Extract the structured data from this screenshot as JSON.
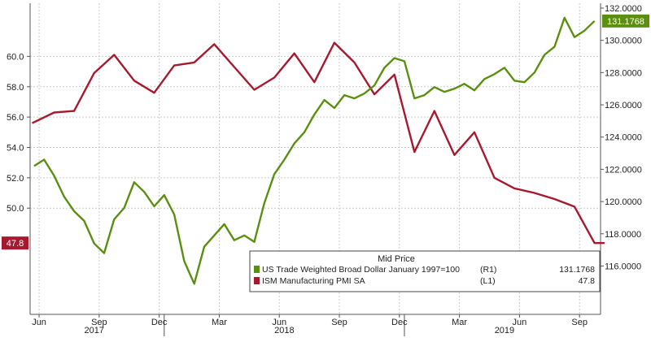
{
  "chart_data": {
    "type": "line",
    "x_ticks": [
      {
        "label": "Jun",
        "t": 0.25
      },
      {
        "label": "Sep",
        "t": 3.25
      },
      {
        "label": "Dec",
        "t": 6.25
      },
      {
        "label": "Mar",
        "t": 9.25
      },
      {
        "label": "Jun",
        "t": 12.25
      },
      {
        "label": "Sep",
        "t": 15.25
      },
      {
        "label": "Dec",
        "t": 18.25
      },
      {
        "label": "Mar",
        "t": 21.25
      },
      {
        "label": "Jun",
        "t": 24.25
      },
      {
        "label": "Sep",
        "t": 27.25
      }
    ],
    "year_labels": [
      {
        "label": "2017",
        "t": 3.0
      },
      {
        "label": "2018",
        "t": 12.5
      },
      {
        "label": "2019",
        "t": 23.5
      }
    ],
    "year_separators_t": [
      6.5,
      18.5
    ],
    "x_range": [
      -0.2,
      28.3
    ],
    "left_axis": {
      "ticks": [
        50.0,
        52.0,
        54.0,
        56.0,
        58.0,
        60.0
      ],
      "tick_labels": [
        "50.0",
        "52.0",
        "54.0",
        "56.0",
        "58.0",
        "60.0"
      ],
      "range": [
        43.0,
        63.5
      ]
    },
    "right_axis": {
      "ticks": [
        116,
        118,
        120,
        122,
        124,
        126,
        128,
        130,
        132
      ],
      "tick_labels": [
        "116.0000",
        "118.0000",
        "120.0000",
        "122.0000",
        "124.0000",
        "126.0000",
        "128.0000",
        "130.0000",
        "132.0000"
      ],
      "range": [
        113.0,
        132.3
      ]
    },
    "series": [
      {
        "name": "ISM Manufacturing PMI SA  (L1)",
        "axis": "left",
        "color": "#a6192e",
        "last_label": "47.8",
        "points": [
          [
            -0.1,
            55.6
          ],
          [
            1.0,
            56.3
          ],
          [
            2.0,
            56.4
          ],
          [
            3.0,
            58.9
          ],
          [
            4.0,
            60.1
          ],
          [
            5.0,
            58.4
          ],
          [
            6.0,
            57.6
          ],
          [
            7.0,
            59.4
          ],
          [
            8.0,
            59.6
          ],
          [
            9.0,
            60.8
          ],
          [
            10.0,
            59.3
          ],
          [
            11.0,
            57.8
          ],
          [
            12.0,
            58.6
          ],
          [
            13.0,
            60.2
          ],
          [
            14.0,
            58.3
          ],
          [
            15.0,
            60.9
          ],
          [
            16.0,
            59.6
          ],
          [
            17.0,
            57.5
          ],
          [
            18.0,
            58.8
          ],
          [
            19.0,
            53.7
          ],
          [
            20.0,
            56.4
          ],
          [
            21.0,
            53.5
          ],
          [
            22.0,
            55.0
          ],
          [
            23.0,
            52.0
          ],
          [
            24.0,
            51.3
          ],
          [
            25.0,
            51.0
          ],
          [
            26.0,
            50.6
          ],
          [
            27.0,
            50.1
          ],
          [
            28.0,
            47.7
          ],
          [
            28.5,
            47.7
          ]
        ]
      },
      {
        "name": "US Trade Weighted Broad Dollar January 1997=100  (R1)",
        "axis": "right",
        "color": "#5b8f0f",
        "last_label": "131.1768",
        "points": [
          [
            0.0,
            122.2
          ],
          [
            0.5,
            122.6
          ],
          [
            1.0,
            121.6
          ],
          [
            1.5,
            120.3
          ],
          [
            2.0,
            119.4
          ],
          [
            2.5,
            118.8
          ],
          [
            3.0,
            117.4
          ],
          [
            3.5,
            116.8
          ],
          [
            4.0,
            118.9
          ],
          [
            4.5,
            119.6
          ],
          [
            5.0,
            121.2
          ],
          [
            5.5,
            120.6
          ],
          [
            6.0,
            119.7
          ],
          [
            6.5,
            120.4
          ],
          [
            7.0,
            119.2
          ],
          [
            7.5,
            116.3
          ],
          [
            8.0,
            114.9
          ],
          [
            8.5,
            117.2
          ],
          [
            9.0,
            117.9
          ],
          [
            9.5,
            118.6
          ],
          [
            10.0,
            117.6
          ],
          [
            10.5,
            117.9
          ],
          [
            11.0,
            117.5
          ],
          [
            11.5,
            119.9
          ],
          [
            12.0,
            121.7
          ],
          [
            12.5,
            122.6
          ],
          [
            13.0,
            123.6
          ],
          [
            13.5,
            124.3
          ],
          [
            14.0,
            125.4
          ],
          [
            14.5,
            126.3
          ],
          [
            15.0,
            125.8
          ],
          [
            15.5,
            126.6
          ],
          [
            16.0,
            126.4
          ],
          [
            16.5,
            126.7
          ],
          [
            17.0,
            127.2
          ],
          [
            17.5,
            128.3
          ],
          [
            18.0,
            128.9
          ],
          [
            18.5,
            128.7
          ],
          [
            19.0,
            126.4
          ],
          [
            19.5,
            126.6
          ],
          [
            20.0,
            127.1
          ],
          [
            20.5,
            126.8
          ],
          [
            21.0,
            127.0
          ],
          [
            21.5,
            127.3
          ],
          [
            22.0,
            126.9
          ],
          [
            22.5,
            127.6
          ],
          [
            23.0,
            127.9
          ],
          [
            23.5,
            128.3
          ],
          [
            24.0,
            127.5
          ],
          [
            24.5,
            127.4
          ],
          [
            25.0,
            128.0
          ],
          [
            25.5,
            129.1
          ],
          [
            26.0,
            129.6
          ],
          [
            26.5,
            131.4
          ],
          [
            27.0,
            130.2
          ],
          [
            27.5,
            130.6
          ],
          [
            28.0,
            131.2
          ]
        ]
      }
    ],
    "legend": {
      "title": "Mid Price",
      "position": "bottom-right",
      "entries": [
        {
          "name": "US Trade Weighted Broad Dollar January 1997=100",
          "axis_tag": "(R1)",
          "value": "131.1768",
          "color": "#5b8f0f"
        },
        {
          "name": "ISM Manufacturing PMI SA",
          "axis_tag": "(L1)",
          "value": "47.8",
          "color": "#a6192e"
        }
      ]
    },
    "grid": true
  }
}
